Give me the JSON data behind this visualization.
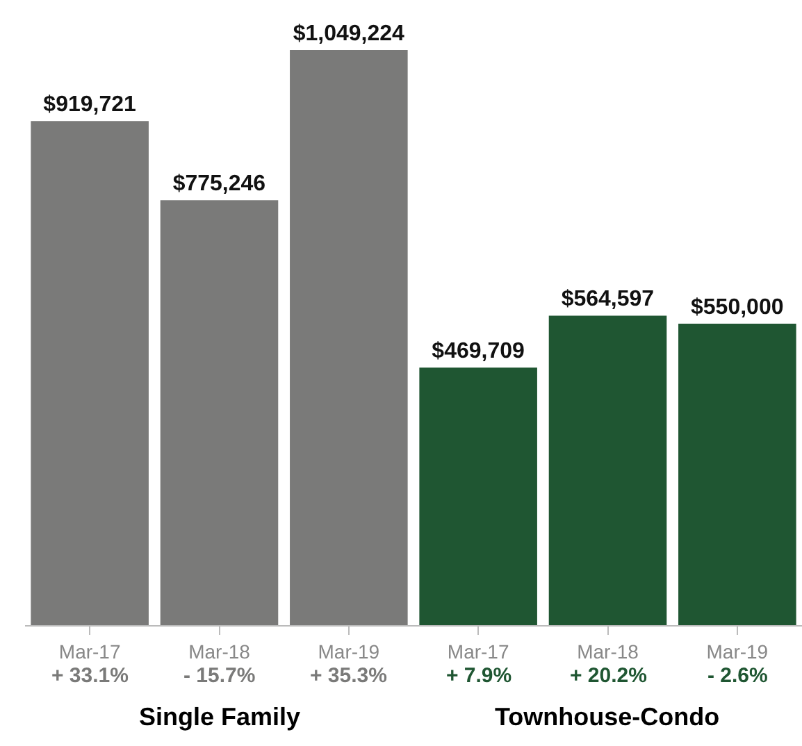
{
  "chart_data": {
    "type": "bar",
    "categories": [
      "Mar-17",
      "Mar-18",
      "Mar-19",
      "Mar-17",
      "Mar-18",
      "Mar-19"
    ],
    "values": [
      919721,
      775246,
      1049224,
      469709,
      564597,
      550000
    ],
    "colors": [
      "#7a7a79",
      "#7a7a79",
      "#7a7a79",
      "#1f5632",
      "#1f5632",
      "#1f5632"
    ],
    "value_labels": [
      "$919,721",
      "$775,246",
      "$1,049,224",
      "$469,709",
      "$564,597",
      "$550,000"
    ],
    "annotations": [
      "+ 33.1%",
      "- 15.7%",
      "+ 35.3%",
      "+ 7.9%",
      "+ 20.2%",
      "- 2.6%",
      "Single Family",
      "Townhouse-Condo"
    ],
    "grid": false,
    "legend": false
  }
}
